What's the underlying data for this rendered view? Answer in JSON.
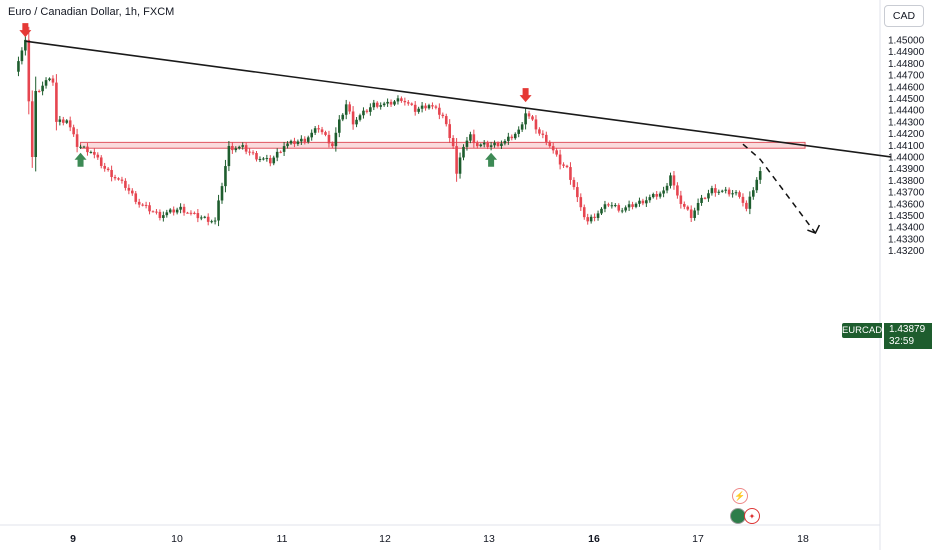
{
  "header": {
    "title": "Euro / Canadian Dollar, 1h, FXCM"
  },
  "currency_button": "CAD",
  "price_tag": {
    "symbol": "EURCAD",
    "price": "1.43879",
    "countdown": "32:59"
  },
  "colors": {
    "up": "#1e5d2e",
    "down": "#e64550",
    "trend": "#1a1a1a",
    "zone_fill": "#f8cfd2",
    "zone_border": "#e05560",
    "arrow_down": "#e53935",
    "arrow_up": "#3d8a55"
  },
  "icons": [
    "lightning-icon",
    "us-flag-icon",
    "canada-flag-icon"
  ],
  "chart_data": {
    "type": "candlestick",
    "title": "Euro / Canadian Dollar, 1h, FXCM",
    "symbol": "EURCAD",
    "ylim": [
      1.4315,
      1.4505
    ],
    "yticks": [
      "1.45000",
      "1.44900",
      "1.44800",
      "1.44700",
      "1.44600",
      "1.44500",
      "1.44400",
      "1.44300",
      "1.44200",
      "1.44100",
      "1.44000",
      "1.43900",
      "1.43800",
      "1.43700",
      "1.43600",
      "1.43500",
      "1.43400",
      "1.43300",
      "1.43200"
    ],
    "xticks": [
      "9",
      "10",
      "11",
      "12",
      "13",
      "16",
      "17",
      "18"
    ],
    "anchors": [
      [
        0,
        1.4475
      ],
      [
        3,
        1.4498
      ],
      [
        5,
        1.44
      ],
      [
        6,
        1.4455
      ],
      [
        9,
        1.4465
      ],
      [
        11,
        1.4465
      ],
      [
        12,
        1.443
      ],
      [
        15,
        1.4432
      ],
      [
        18,
        1.441
      ],
      [
        22,
        1.4405
      ],
      [
        26,
        1.439
      ],
      [
        32,
        1.4375
      ],
      [
        36,
        1.436
      ],
      [
        42,
        1.435
      ],
      [
        48,
        1.4356
      ],
      [
        52,
        1.435
      ],
      [
        58,
        1.4345
      ],
      [
        62,
        1.4408
      ],
      [
        66,
        1.4408
      ],
      [
        70,
        1.44
      ],
      [
        74,
        1.4396
      ],
      [
        78,
        1.441
      ],
      [
        84,
        1.4415
      ],
      [
        88,
        1.4425
      ],
      [
        92,
        1.441
      ],
      [
        94,
        1.443
      ],
      [
        96,
        1.4445
      ],
      [
        98,
        1.443
      ],
      [
        100,
        1.4435
      ],
      [
        104,
        1.4445
      ],
      [
        108,
        1.4445
      ],
      [
        112,
        1.445
      ],
      [
        116,
        1.444
      ],
      [
        120,
        1.4445
      ],
      [
        124,
        1.4435
      ],
      [
        127,
        1.441
      ],
      [
        128,
        1.4385
      ],
      [
        130,
        1.441
      ],
      [
        132,
        1.4418
      ],
      [
        134,
        1.441
      ],
      [
        138,
        1.441
      ],
      [
        142,
        1.4413
      ],
      [
        146,
        1.4422
      ],
      [
        148,
        1.4438
      ],
      [
        150,
        1.443
      ],
      [
        152,
        1.442
      ],
      [
        154,
        1.4415
      ],
      [
        156,
        1.4405
      ],
      [
        158,
        1.4395
      ],
      [
        160,
        1.439
      ],
      [
        162,
        1.4375
      ],
      [
        164,
        1.4355
      ],
      [
        166,
        1.4345
      ],
      [
        168,
        1.435
      ],
      [
        172,
        1.436
      ],
      [
        176,
        1.4355
      ],
      [
        180,
        1.436
      ],
      [
        184,
        1.4365
      ],
      [
        188,
        1.437
      ],
      [
        190,
        1.4385
      ],
      [
        192,
        1.4365
      ],
      [
        196,
        1.435
      ],
      [
        198,
        1.436
      ],
      [
        202,
        1.4372
      ],
      [
        206,
        1.437
      ],
      [
        210,
        1.4368
      ],
      [
        212,
        1.4355
      ],
      [
        214,
        1.4373
      ],
      [
        216,
        1.4388
      ]
    ],
    "trendline": [
      [
        3,
        1.4499
      ],
      [
        254,
        1.44
      ]
    ],
    "zone": {
      "x0": 19,
      "x1": 229,
      "y0": 1.44075,
      "y1": 1.44125
    },
    "projection": [
      [
        211,
        1.4411
      ],
      [
        216,
        1.4398
      ],
      [
        232,
        1.4335
      ]
    ],
    "markers": [
      {
        "kind": "down",
        "x": 3,
        "y": 1.4499
      },
      {
        "kind": "down",
        "x": 148,
        "y": 1.44435
      },
      {
        "kind": "up",
        "x": 19,
        "y": 1.4407
      },
      {
        "kind": "up",
        "x": 138,
        "y": 1.4407
      }
    ]
  }
}
